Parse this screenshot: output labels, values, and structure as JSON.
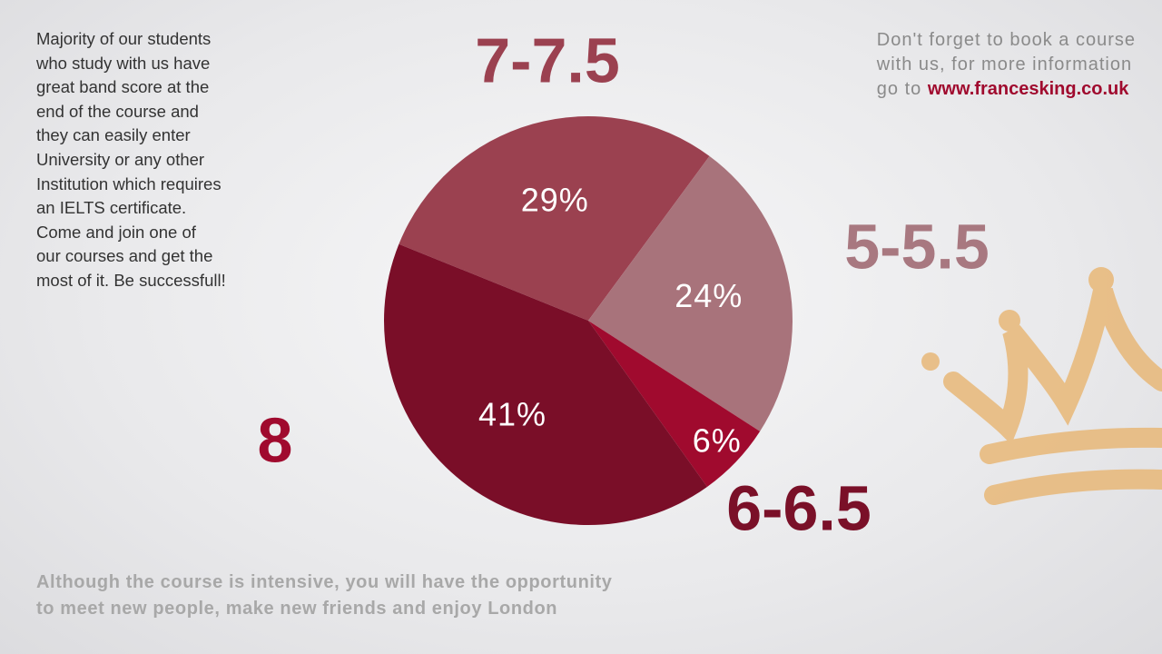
{
  "chart_data": {
    "type": "pie",
    "categories": [
      "7-7.5",
      "5-5.5",
      "8",
      "6-6.5"
    ],
    "values": [
      29,
      24,
      6,
      41
    ],
    "value_labels": [
      "29%",
      "24%",
      "6%",
      "41%"
    ],
    "colors": [
      "#9b4150",
      "#a8737b",
      "#a00a2e",
      "#7a0e28"
    ],
    "label_colors": [
      "#9b4150",
      "#a87880",
      "#a00a2e",
      "#7a1028"
    ]
  },
  "left_text": {
    "lines": [
      "Majority of our students",
      "who study with us have",
      "great band score at the",
      "end of the course and",
      "they can easily enter",
      "University or any other",
      "Institution which requires",
      "an IELTS certificate.",
      "Come and join one of",
      "our courses and get the",
      "most of it. Be successfull!"
    ]
  },
  "right_text": {
    "lines": [
      "Don't forget to book a course",
      "with us, for more information"
    ],
    "prefix": "go to",
    "link": "www.francesking.co.uk"
  },
  "bottom_text": {
    "lines": [
      "Although the course is intensive, you will have the opportunity",
      "to meet new people, make new friends and enjoy London"
    ]
  }
}
